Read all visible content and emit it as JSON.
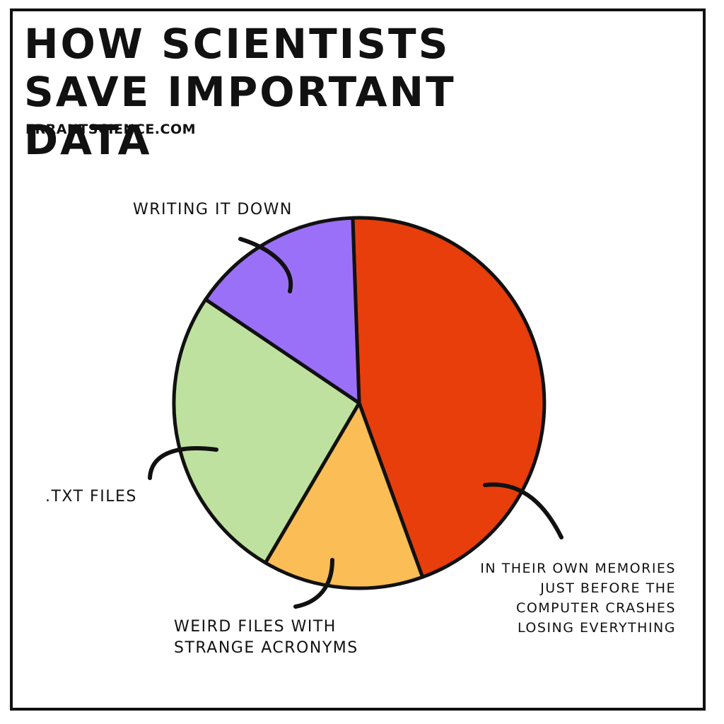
{
  "title": "How scientists save important data",
  "credit": "ErrantScience.com",
  "chart_data": {
    "type": "pie",
    "title": "How scientists save important data",
    "slices": [
      {
        "label": "In their own memories just before the computer crashes losing everything",
        "value": 45,
        "color": "#e83e0b"
      },
      {
        "label": "Weird files with strange acronyms",
        "value": 14,
        "color": "#fbbd56"
      },
      {
        "label": ".TXT files",
        "value": 26,
        "color": "#bfe1a0"
      },
      {
        "label": "Writing it down",
        "value": 15,
        "color": "#9b70f9"
      }
    ],
    "labels": {
      "memories": "In their own memories just before the computer crashes losing everything",
      "weird": "Weird files with strange acronyms",
      "txt": ".TXT files",
      "writing": "Writing it down"
    }
  }
}
